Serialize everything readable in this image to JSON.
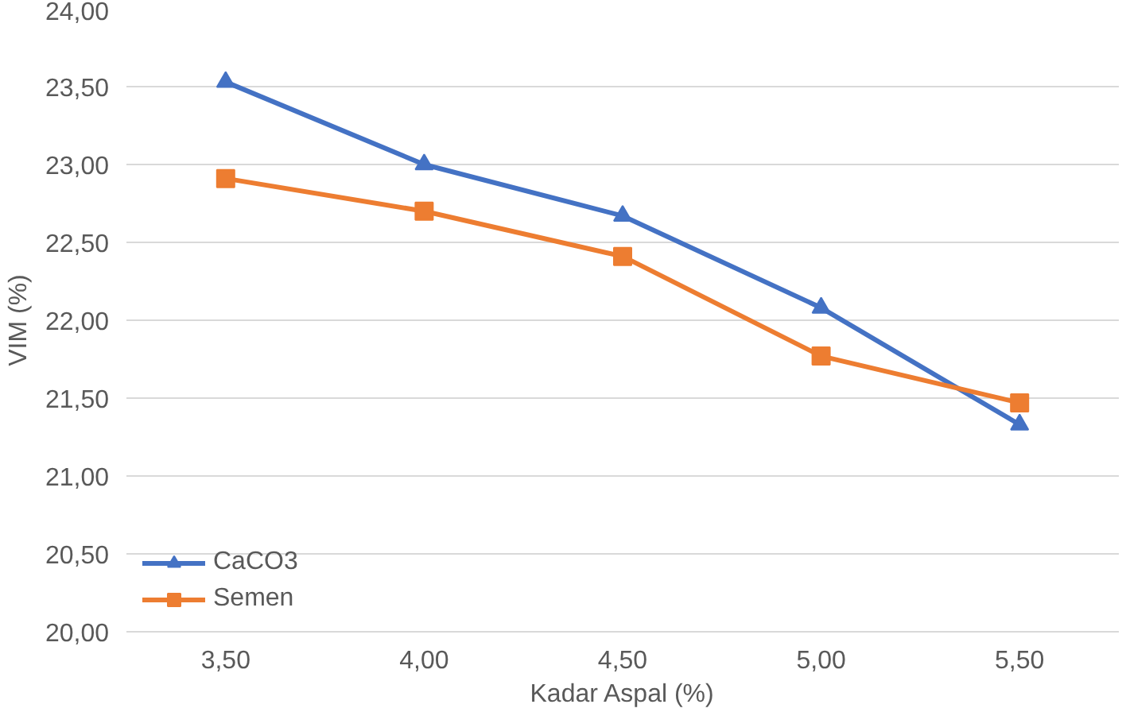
{
  "chart_data": {
    "type": "line",
    "xlabel": "Kadar Aspal (%)",
    "ylabel": "VIM (%)",
    "categories": [
      "3,50",
      "4,00",
      "4,50",
      "5,00",
      "5,50"
    ],
    "series": [
      {
        "name": "CaCO3",
        "color": "#4472c4",
        "marker": "triangle",
        "values": [
          23.53,
          23.0,
          22.67,
          22.08,
          21.33
        ]
      },
      {
        "name": "Semen",
        "color": "#ed7d31",
        "marker": "square",
        "values": [
          22.91,
          22.7,
          22.41,
          21.77,
          21.47
        ]
      }
    ],
    "ylim": [
      20,
      24
    ],
    "yticks": [
      {
        "value": 20,
        "label": "20,00"
      },
      {
        "value": 20.5,
        "label": "20,50"
      },
      {
        "value": 21,
        "label": "21,00"
      },
      {
        "value": 21.5,
        "label": "21,50"
      },
      {
        "value": 22,
        "label": "22,00"
      },
      {
        "value": 22.5,
        "label": "22,50"
      },
      {
        "value": 23,
        "label": "23,00"
      },
      {
        "value": 23.5,
        "label": "23,50"
      },
      {
        "value": 24,
        "label": "24,00"
      }
    ],
    "grid": "y",
    "legend": "bottom left",
    "line_style": "solid"
  }
}
